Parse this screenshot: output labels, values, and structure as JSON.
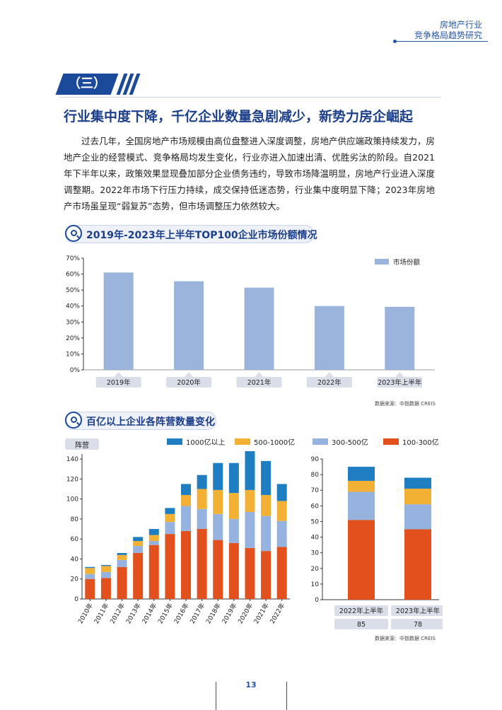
{
  "header": {
    "line1": "房地产行业",
    "line2": "竞争格局趋势研究"
  },
  "section": {
    "tab": "（三）",
    "title": "行业集中度下降，千亿企业数量急剧减少，新势力房企崛起"
  },
  "paragraph": "过去几年，全国房地产市场规模由高位盘整进入深度调整，房地产供应端政策持续发力，房地产企业的经营模式、竞争格局均发生变化，行业亦进入加速出清、优胜劣汰的阶段。自2021年下半年以来，政策效果显现叠加部分企业债务违约，导致市场降温明显，房地产行业进入深度调整期。2022年市场下行压力持续，成交保持低迷态势，行业集中度明显下降；2023年房地产市场虽呈现“弱复苏”态势，但市场调整压力依然较大。",
  "chart1": {
    "banner": "2019年-2023年上半年TOP100企业市场份额情况",
    "source": "数据来源：中指数据 CREIS"
  },
  "chart2": {
    "banner": "百亿以上企业各阵营数量变化",
    "ylabel": "阵营",
    "source": "数据来源：中指数据 CREIS"
  },
  "page_number": "13",
  "colors": {
    "bar1": "#9bb4db",
    "c1000": "#1f7ec1",
    "c500": "#f2b134",
    "c300": "#95b3de",
    "c100": "#e2501e",
    "brand": "#1c4a9a"
  },
  "chart_data": [
    {
      "type": "bar",
      "categories": [
        "2019年",
        "2020年",
        "2021年",
        "2022年",
        "2023年上半年"
      ],
      "series": [
        {
          "name": "市场份额",
          "values": [
            61,
            55.5,
            51.5,
            40,
            39.5
          ]
        }
      ],
      "yticks": [
        "0%",
        "10%",
        "20%",
        "30%",
        "40%",
        "50%",
        "60%",
        "70%"
      ],
      "ylim": [
        0,
        70
      ],
      "legend": "top-right",
      "title": "",
      "xlabel": "",
      "ylabel": ""
    },
    {
      "type": "bar",
      "stacked": true,
      "categories": [
        "2010年",
        "2011年",
        "2012年",
        "2013年",
        "2014年",
        "2015年",
        "2016年",
        "2017年",
        "2018年",
        "2019年",
        "2020年",
        "2021年",
        "2022年"
      ],
      "series": [
        {
          "name": "100-300亿",
          "values": [
            20,
            21,
            32,
            46,
            54,
            65,
            68,
            70,
            59,
            56,
            51,
            48,
            52
          ]
        },
        {
          "name": "300-500亿",
          "values": [
            5,
            6,
            7,
            7,
            4,
            12,
            25,
            20,
            26,
            24,
            36,
            35,
            26
          ]
        },
        {
          "name": "500-1000亿",
          "values": [
            6,
            6,
            5,
            5,
            6,
            8,
            11,
            20,
            24,
            26,
            22,
            21,
            20
          ]
        },
        {
          "name": "1000亿以上",
          "values": [
            1,
            1,
            2,
            4,
            6,
            6,
            11,
            14,
            27,
            30,
            44,
            34,
            17
          ]
        }
      ],
      "yticks": [
        "0",
        "20",
        "40",
        "60",
        "80",
        "100",
        "120",
        "140"
      ],
      "ylim": [
        0,
        145
      ],
      "legend": "top",
      "title": "",
      "xlabel": ""
    },
    {
      "type": "bar",
      "stacked": true,
      "categories": [
        "2022年上半年",
        "2023年上半年"
      ],
      "totals": [
        "85",
        "78"
      ],
      "series": [
        {
          "name": "100-300亿",
          "values": [
            51,
            45
          ]
        },
        {
          "name": "300-500亿",
          "values": [
            18,
            16
          ]
        },
        {
          "name": "500-1000亿",
          "values": [
            7,
            10
          ]
        },
        {
          "name": "1000亿以上",
          "values": [
            9,
            7
          ]
        }
      ],
      "yticks": [
        "0",
        "10",
        "20",
        "30",
        "40",
        "50",
        "60",
        "70",
        "80",
        "90"
      ],
      "ylim": [
        0,
        90
      ],
      "title": "",
      "xlabel": "",
      "ylabel": ""
    }
  ]
}
